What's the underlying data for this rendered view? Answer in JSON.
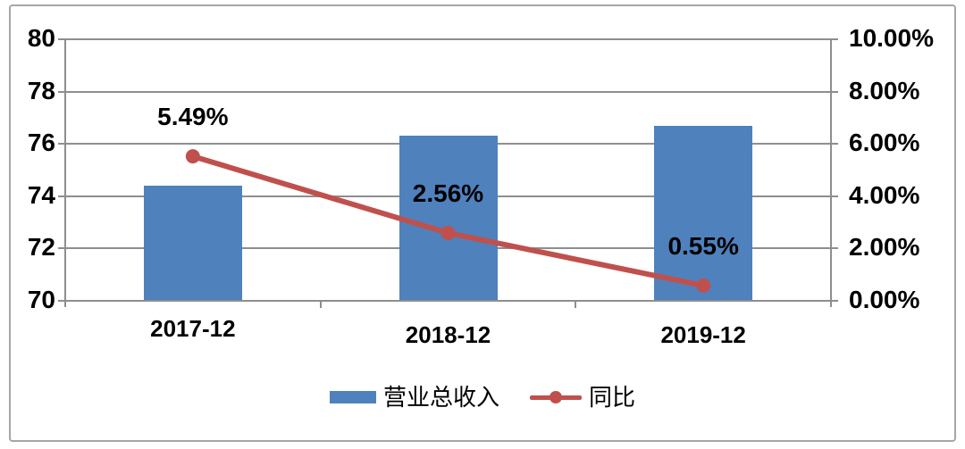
{
  "chart_data": {
    "type": "combo-bar-line",
    "categories": [
      "2017-12",
      "2018-12",
      "2019-12"
    ],
    "series": [
      {
        "name": "营业总收入",
        "type": "bar",
        "axis": "left",
        "color": "#4F81BD",
        "values": [
          74.37,
          76.28,
          76.66
        ]
      },
      {
        "name": "同比",
        "type": "line",
        "axis": "right",
        "color": "#C0504D",
        "values": [
          5.49,
          2.56,
          0.55
        ],
        "point_labels": [
          "5.49%",
          "2.56%",
          "0.55%"
        ]
      }
    ],
    "left_axis": {
      "min": 70,
      "max": 80,
      "ticks": [
        "80",
        "78",
        "76",
        "74",
        "72",
        "70"
      ]
    },
    "right_axis": {
      "min": 0,
      "max": 10,
      "ticks": [
        "10.00%",
        "8.00%",
        "6.00%",
        "4.00%",
        "2.00%",
        "0.00%"
      ]
    },
    "grid": true,
    "legend_position": "bottom",
    "colors": {
      "bar": "#4F81BD",
      "line": "#C0504D",
      "gridline": "#8e8e8e",
      "border": "#a6a6a6",
      "text": "#000000"
    }
  }
}
